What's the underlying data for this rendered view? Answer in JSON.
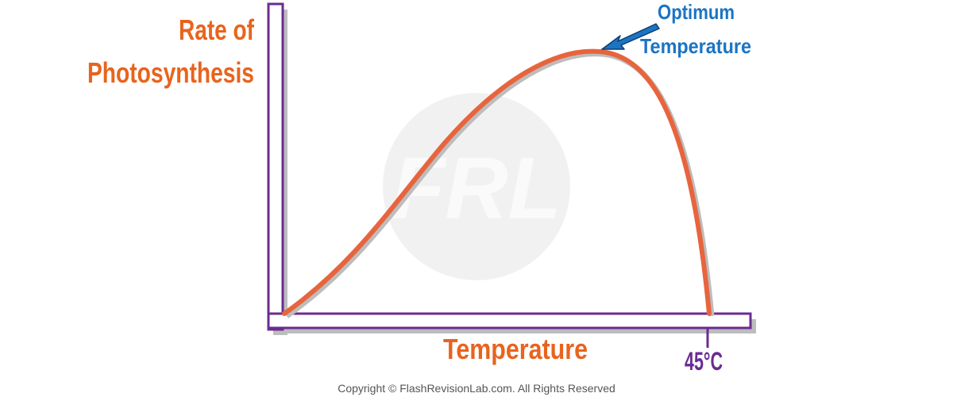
{
  "diagram": {
    "y_axis_label": [
      "Rate of",
      "Photosynthesis"
    ],
    "x_axis_label": "Temperature",
    "x_tick": "45°C",
    "annotation": [
      "Optimum",
      "Temperature"
    ],
    "watermark": "FRL",
    "copyright": "Copyright © FlashRevisionLab.com. All Rights Reserved"
  }
}
